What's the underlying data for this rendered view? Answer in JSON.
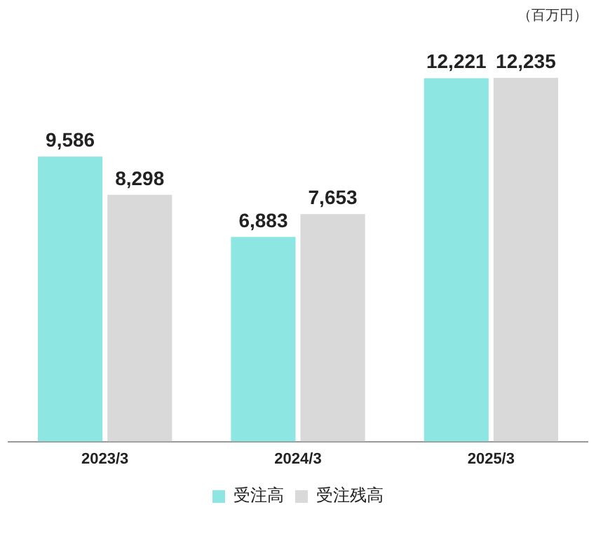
{
  "chart_data": {
    "type": "bar",
    "categories": [
      "2023/3",
      "2024/3",
      "2025/3"
    ],
    "series": [
      {
        "name": "受注高",
        "color": "#8ee6e2",
        "values": [
          9586,
          6883,
          12221
        ],
        "value_labels": [
          "9,586",
          "6,883",
          "12,221"
        ]
      },
      {
        "name": "受注残高",
        "color": "#d9d9d9",
        "values": [
          8298,
          7653,
          12235
        ],
        "value_labels": [
          "8,298",
          "7,653",
          "12,235"
        ]
      }
    ],
    "annotations": [
      "（百万円）"
    ],
    "legend": "bottom",
    "grid": false
  }
}
